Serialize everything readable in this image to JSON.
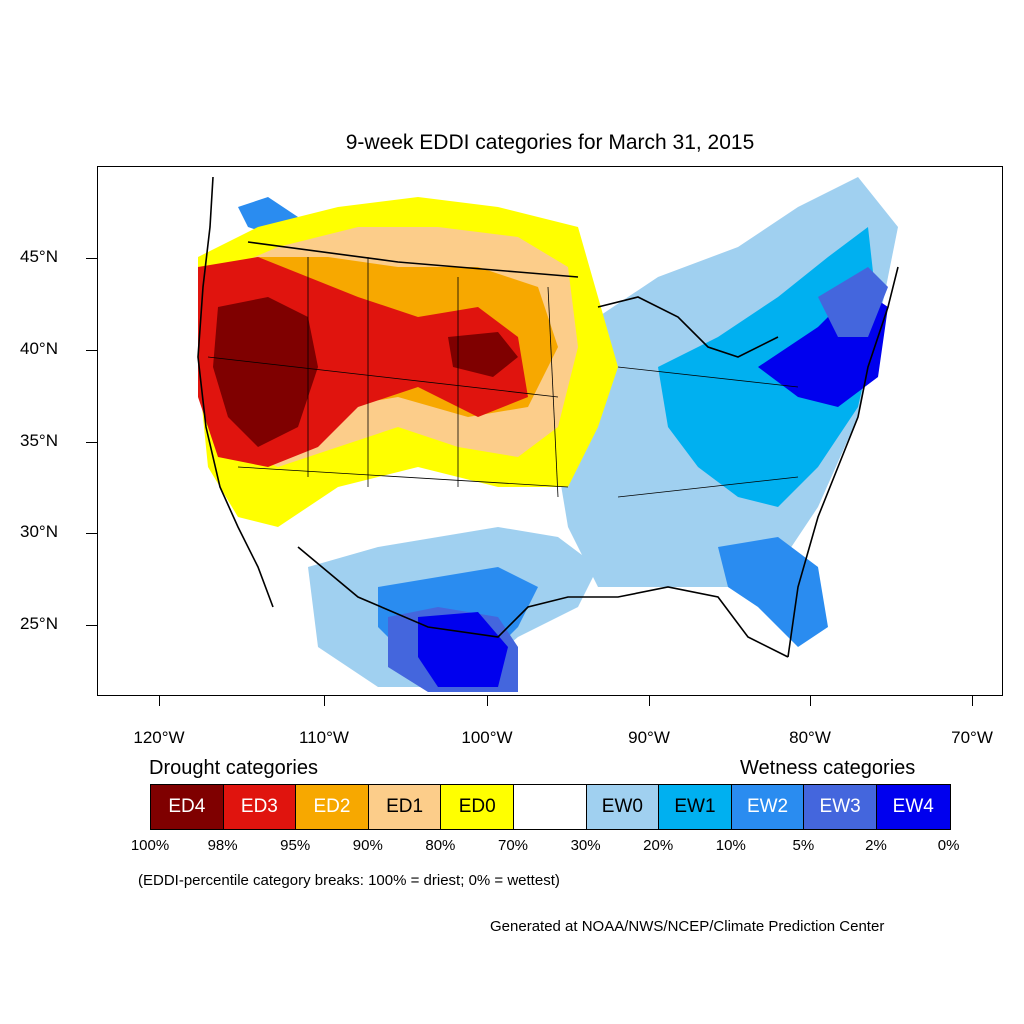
{
  "title": "9-week EDDI categories for March 31, 2015",
  "y_axis_labels": [
    "45°N",
    "40°N",
    "35°N",
    "30°N",
    "25°N"
  ],
  "x_axis_labels": [
    "120°W",
    "110°W",
    "100°W",
    "90°W",
    "80°W",
    "70°W"
  ],
  "legend": {
    "drought_title": "Drought categories",
    "wetness_title": "Wetness categories",
    "categories": [
      {
        "label": "ED4",
        "color": "#7f0000",
        "text_color": "#ffffff"
      },
      {
        "label": "ED3",
        "color": "#e0140e",
        "text_color": "#ffffff"
      },
      {
        "label": "ED2",
        "color": "#f7a800",
        "text_color": "#ffffff"
      },
      {
        "label": "ED1",
        "color": "#fccd8a",
        "text_color": "#000000"
      },
      {
        "label": "ED0",
        "color": "#ffff00",
        "text_color": "#000000"
      },
      {
        "label": "",
        "color": "#ffffff",
        "text_color": "#000000"
      },
      {
        "label": "EW0",
        "color": "#a0d0f0",
        "text_color": "#000000"
      },
      {
        "label": "EW1",
        "color": "#00b0f0",
        "text_color": "#000000"
      },
      {
        "label": "EW2",
        "color": "#2a8cf0",
        "text_color": "#ffffff"
      },
      {
        "label": "EW3",
        "color": "#4466dd",
        "text_color": "#ffffff"
      },
      {
        "label": "EW4",
        "color": "#0000ee",
        "text_color": "#ffffff"
      }
    ],
    "percentiles": [
      "100%",
      "98%",
      "95%",
      "90%",
      "80%",
      "70%",
      "30%",
      "20%",
      "10%",
      "5%",
      "2%",
      "0%"
    ]
  },
  "note": "(EDDI-percentile category breaks: 100% = driest; 0% = wettest)",
  "credit": "Generated at NOAA/NWS/NCEP/Climate Prediction Center"
}
